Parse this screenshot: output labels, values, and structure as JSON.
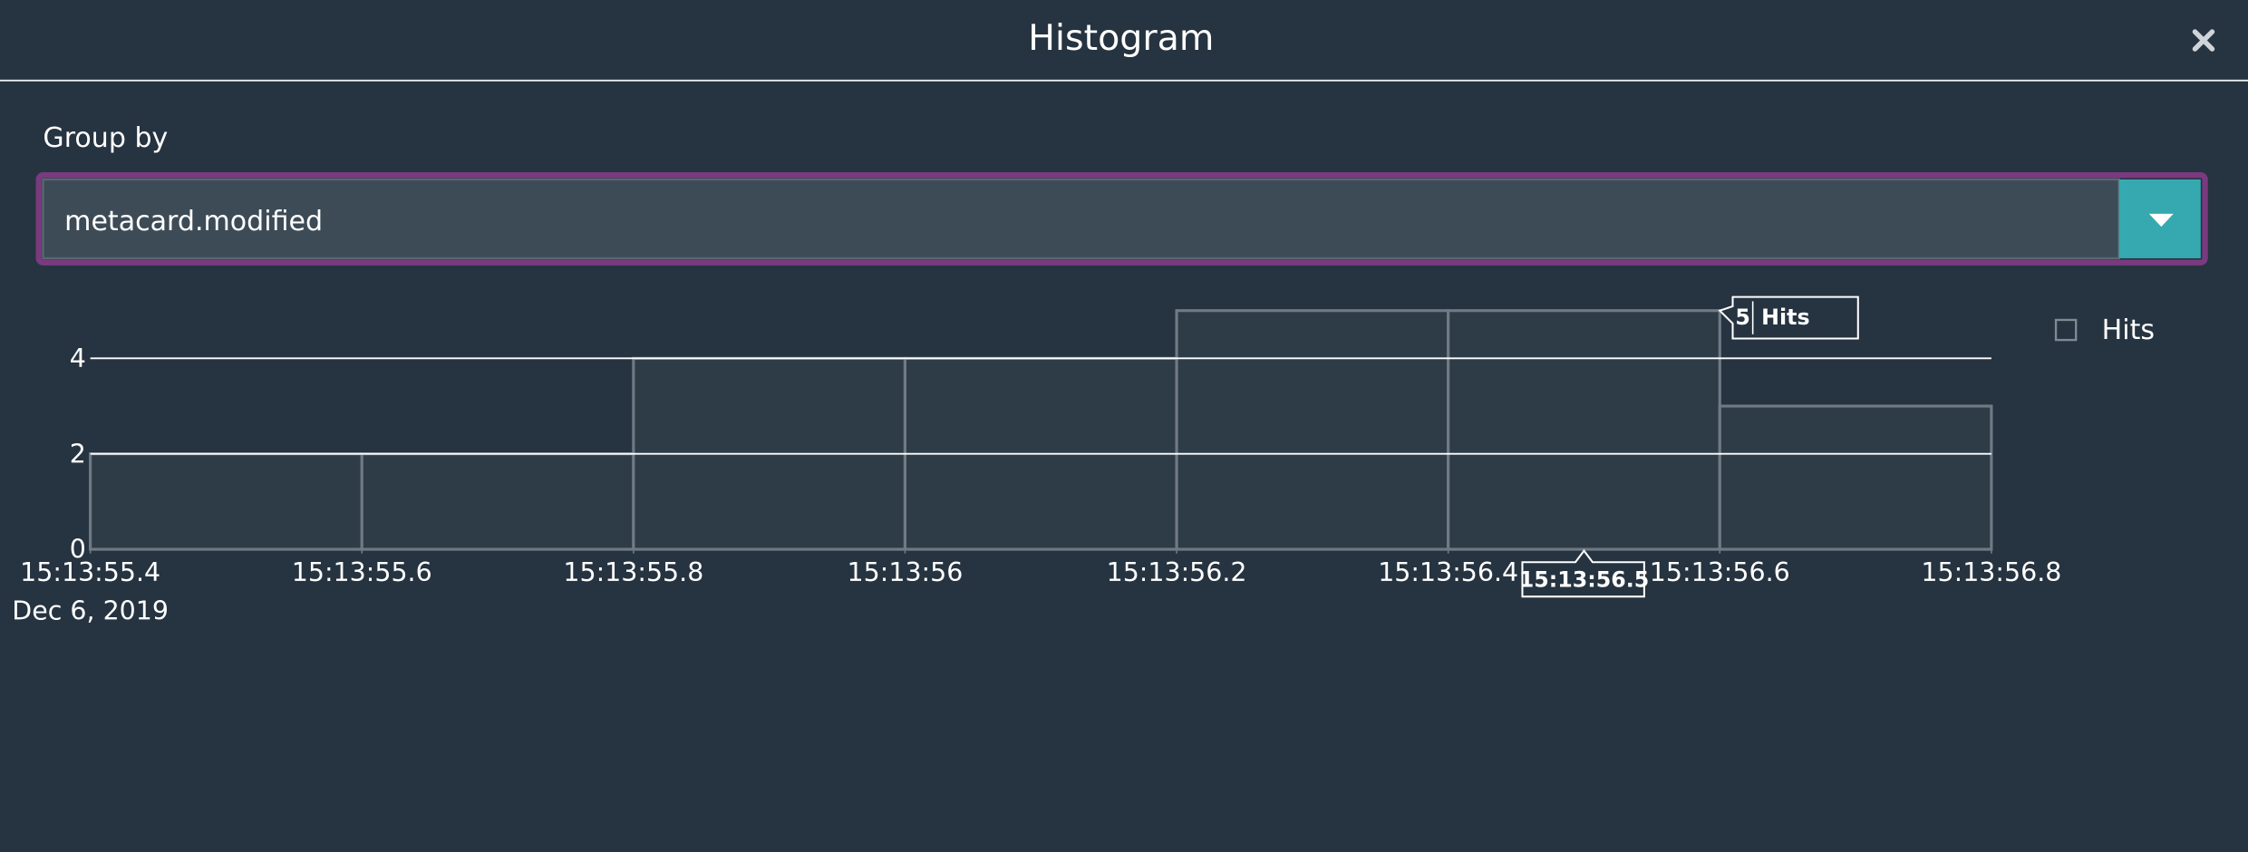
{
  "dialog": {
    "title": "Histogram",
    "group_by_label": "Group by",
    "group_by_value": "metacard.modified"
  },
  "chart_data": {
    "type": "histogram",
    "bins": [
      55.4,
      55.6,
      55.8,
      56.0,
      56.2,
      56.4,
      56.6,
      56.8
    ],
    "series": [
      {
        "name": "Hits",
        "color": "#2e3c48",
        "values": [
          2,
          2,
          4,
          4,
          5,
          5,
          3
        ]
      }
    ],
    "xlim": [
      55.4,
      56.8
    ],
    "xticks": [
      {
        "value": 55.4,
        "label": "15:13:55.4"
      },
      {
        "value": 55.6,
        "label": "15:13:55.6"
      },
      {
        "value": 55.8,
        "label": "15:13:55.8"
      },
      {
        "value": 56.0,
        "label": "15:13:56"
      },
      {
        "value": 56.2,
        "label": "15:13:56.2"
      },
      {
        "value": 56.4,
        "label": "15:13:56.4"
      },
      {
        "value": 56.6,
        "label": "15:13:56.6"
      },
      {
        "value": 56.8,
        "label": "15:13:56.8"
      }
    ],
    "x_date": "Dec 6, 2019",
    "ylim": [
      0,
      5
    ],
    "yticks": [
      0,
      2,
      4
    ],
    "grid": true,
    "tooltip": {
      "x": {
        "value": 56.5,
        "label": "15:13:56.5"
      },
      "value": 5,
      "series": "Hits"
    }
  }
}
